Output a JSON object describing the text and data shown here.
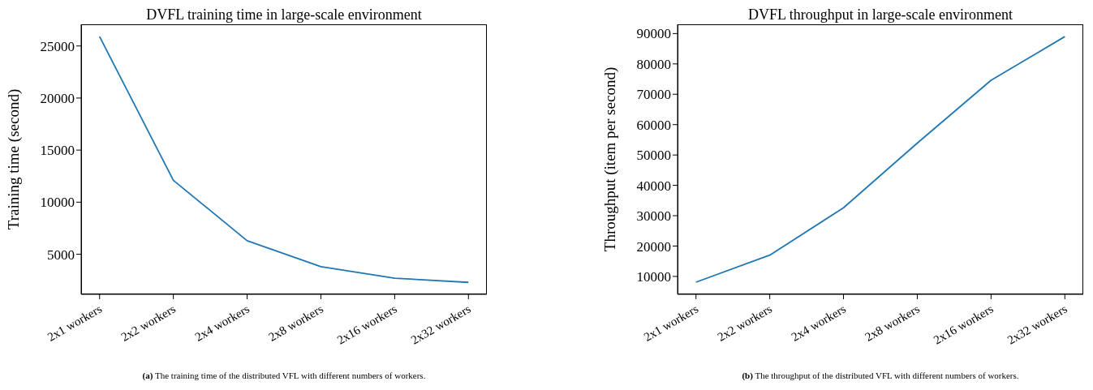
{
  "chart_data": [
    {
      "type": "line",
      "title": "DVFL training time in large-scale environment",
      "ylabel": "Training time (second)",
      "categories": [
        "2x1 workers",
        "2x2 workers",
        "2x4 workers",
        "2x8 workers",
        "2x16 workers",
        "2x32 workers"
      ],
      "series": [
        {
          "color": "#1f77b4",
          "values": [
            25900,
            12100,
            6300,
            3800,
            2700,
            2300
          ]
        }
      ],
      "ylim": [
        1150,
        27080
      ],
      "yticks": [
        5000,
        10000,
        15000,
        20000,
        25000
      ],
      "grid": false,
      "legend": false,
      "marker": "none",
      "line_style": "solid",
      "annotations": [
        "(a) The training time of the distributed VFL with different numbers of workers."
      ]
    },
    {
      "type": "line",
      "title": "DVFL throughput in large-scale environment",
      "ylabel": "Throughput (item per second)",
      "categories": [
        "2x1 workers",
        "2x2 workers",
        "2x4 workers",
        "2x8 workers",
        "2x16 workers",
        "2x32 workers"
      ],
      "series": [
        {
          "color": "#1f77b4",
          "values": [
            8100,
            17000,
            32600,
            53900,
            74600,
            89000
          ]
        }
      ],
      "ylim": [
        4100,
        93040
      ],
      "yticks": [
        10000,
        20000,
        30000,
        40000,
        50000,
        60000,
        70000,
        80000,
        90000
      ],
      "grid": false,
      "legend": false,
      "marker": "none",
      "line_style": "solid",
      "annotations": [
        "(b) The throughput of the distributed VFL with different numbers of workers."
      ]
    }
  ]
}
